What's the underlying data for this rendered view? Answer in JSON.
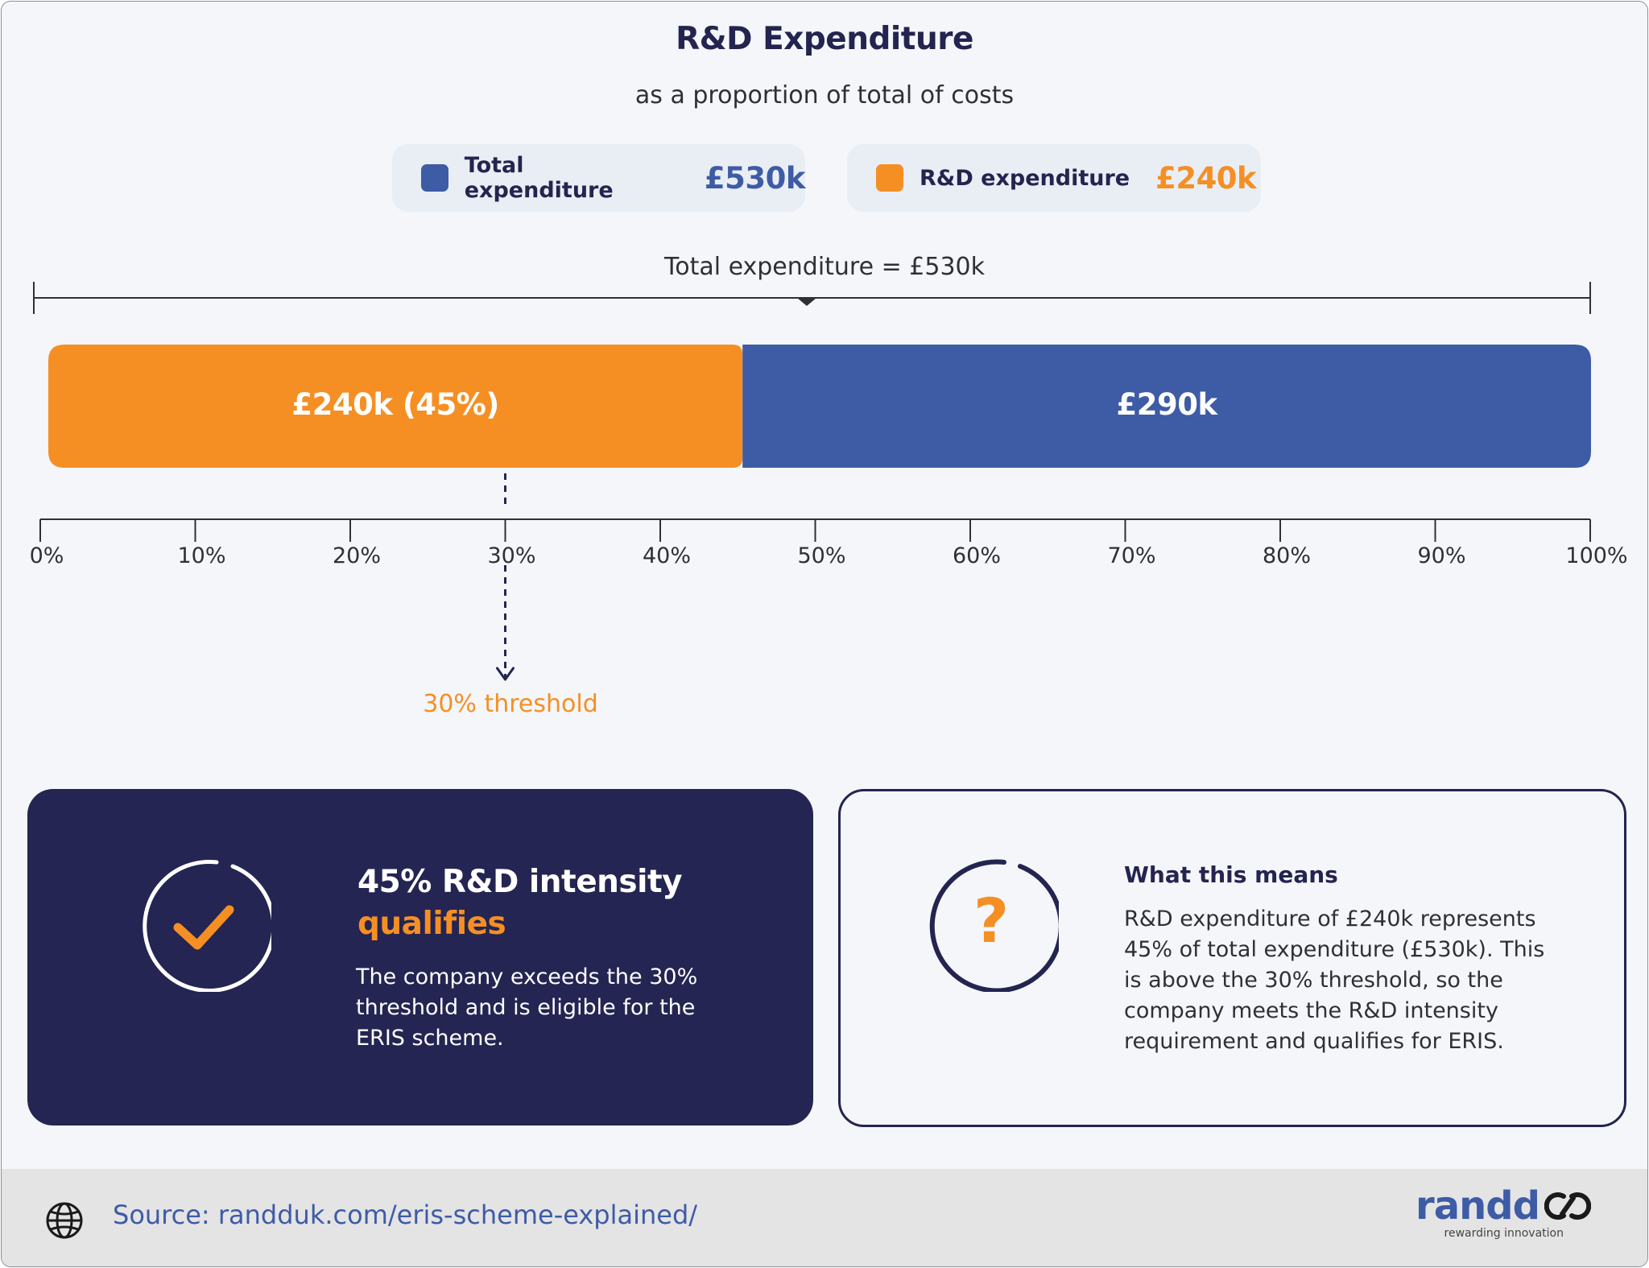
{
  "title": "R&D Expenditure",
  "subtitle": "as a proportion of total of costs",
  "legend": [
    {
      "label": "Total expenditure",
      "value": "£530k",
      "color": "#3e5ba5"
    },
    {
      "label": "R&D expenditure",
      "value": "£240k",
      "color": "#f58f24"
    }
  ],
  "total_caption": "Total expenditure = £530k",
  "chart_data": {
    "type": "bar",
    "orientation": "horizontal-stacked",
    "segments": [
      {
        "label": "£240k (45%)",
        "value": 240,
        "percent": 45,
        "color": "#f58f24"
      },
      {
        "label": "£290k",
        "value": 290,
        "percent": 55,
        "color": "#3e5ba5"
      }
    ],
    "total": 530,
    "xlim": [
      0,
      100
    ],
    "ticks": [
      "0%",
      "10%",
      "20%",
      "30%",
      "40%",
      "50%",
      "60%",
      "70%",
      "80%",
      "90%",
      "100%"
    ],
    "threshold": {
      "percent": 30,
      "label": "30% threshold",
      "color": "#f58f24"
    }
  },
  "result_card": {
    "heading": "45% R&D  intensity",
    "heading_accent": "qualifies",
    "body": "The company exceeds the 30% threshold and is eligible for the ERIS scheme.",
    "icon": "check-circle-icon",
    "accent_color": "#f58f24",
    "background": "#242552"
  },
  "info_card": {
    "heading": "What this means",
    "body": "R&D expenditure of £240k represents 45% of total expenditure (£530k). This is above the 30% threshold, so the company meets the R&D intensity requirement and qualifies for ERIS.",
    "icon": "question-circle-icon"
  },
  "footer": {
    "source": "Source: randduk.com/eris-scheme-explained/",
    "icon": "globe-icon",
    "brand": "randd",
    "tagline": "rewarding innovation"
  }
}
